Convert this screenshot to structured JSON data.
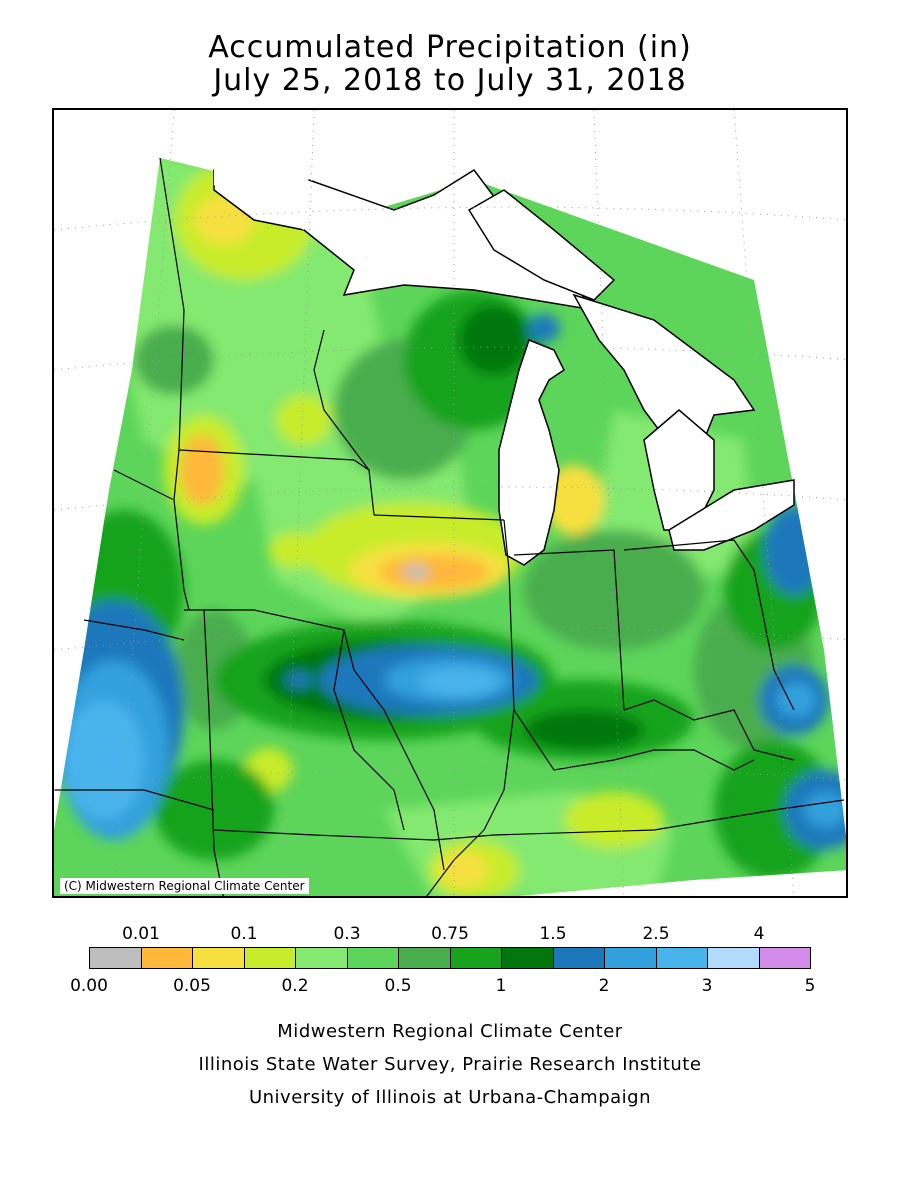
{
  "title": {
    "line1": "Accumulated Precipitation (in)",
    "line2": "July 25, 2018 to July 31, 2018"
  },
  "map": {
    "copyright": "(C) Midwestern Regional Climate Center",
    "colors": {
      "gray": "#bdbdbd",
      "orange": "#ffb83a",
      "yellow": "#f6e03f",
      "lime": "#c8ec2c",
      "lightgreen": "#84e970",
      "green": "#5dd55a",
      "midgreen": "#49ad4e",
      "green2": "#18a31d",
      "darkgreen": "#00770c",
      "blue": "#1b78bb",
      "midblue": "#31a0dc",
      "lightblue": "#49b4ec",
      "paleblue": "#b1dafb",
      "violet": "#d38bea"
    }
  },
  "legend": {
    "top_labels": [
      "0.01",
      "0.1",
      "0.3",
      "0.75",
      "1.5",
      "2.5",
      "4"
    ],
    "bottom_labels": [
      "0.00",
      "0.05",
      "0.2",
      "0.5",
      "1",
      "2",
      "3",
      "5"
    ],
    "colors": [
      "#bdbdbd",
      "#ffb83a",
      "#f6e03f",
      "#c8ec2c",
      "#84e970",
      "#5dd55a",
      "#49ad4e",
      "#18a31d",
      "#00770c",
      "#1b78bb",
      "#31a0dc",
      "#49b4ec",
      "#b1dafb",
      "#d38bea"
    ]
  },
  "credits": {
    "line1": "Midwestern Regional Climate Center",
    "line2": "Illinois State Water Survey, Prairie Research Institute",
    "line3": "University of Illinois at Urbana-Champaign"
  }
}
